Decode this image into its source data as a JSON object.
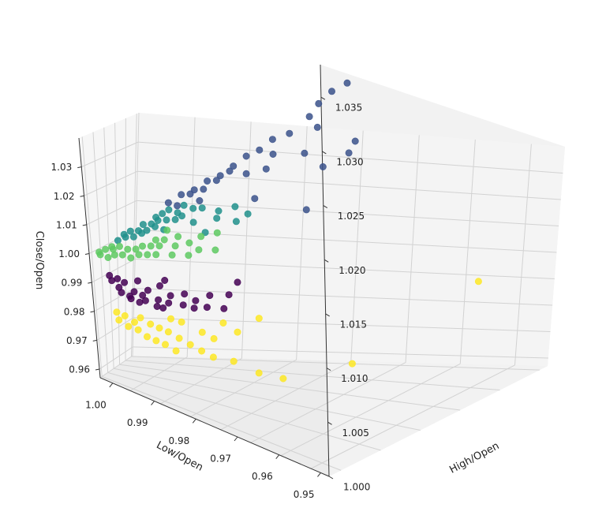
{
  "chart_data": {
    "type": "scatter",
    "projection": "3d",
    "title": "",
    "xlabel": "High/Open",
    "ylabel": "Low/Open",
    "zlabel": "Close/Open",
    "xlim": [
      1.0,
      1.038
    ],
    "ylim": [
      1.003,
      0.948
    ],
    "zlim": [
      0.957,
      1.04
    ],
    "x_ticks": [
      "1.000",
      "1.005",
      "1.010",
      "1.015",
      "1.020",
      "1.025",
      "1.030",
      "1.035"
    ],
    "y_ticks": [
      "1.00",
      "0.99",
      "0.98",
      "0.97",
      "0.96",
      "0.95"
    ],
    "z_ticks": [
      "0.96",
      "0.97",
      "0.98",
      "0.99",
      "1.00",
      "1.01",
      "1.02",
      "1.03"
    ],
    "grid": true,
    "colormap": "viridis",
    "cluster_colors": {
      "0": "#440154",
      "1": "#3b528b",
      "2": "#21918c",
      "3": "#5ec962",
      "4": "#fde725"
    },
    "series": [
      {
        "cluster": "0",
        "color": "#440154",
        "points": [
          [
            1.004,
            0.996,
            0.99
          ],
          [
            1.003,
            0.995,
            0.988
          ],
          [
            1.005,
            0.994,
            0.987
          ],
          [
            1.002,
            0.997,
            0.992
          ],
          [
            1.006,
            0.993,
            0.986
          ],
          [
            1.004,
            0.992,
            0.985
          ],
          [
            1.007,
            0.994,
            0.988
          ],
          [
            1.003,
            0.996,
            0.991
          ],
          [
            1.008,
            0.992,
            0.985
          ],
          [
            1.005,
            0.99,
            0.983
          ],
          [
            1.01,
            0.993,
            0.987
          ],
          [
            1.006,
            0.991,
            0.984
          ],
          [
            1.009,
            0.995,
            0.99
          ],
          [
            1.004,
            0.991,
            0.984
          ],
          [
            1.011,
            0.99,
            0.984
          ],
          [
            1.012,
            0.993,
            0.988
          ],
          [
            1.008,
            0.989,
            0.982
          ],
          [
            1.013,
            0.991,
            0.986
          ],
          [
            1.007,
            0.988,
            0.982
          ],
          [
            1.015,
            0.991,
            0.988
          ],
          [
            1.002,
            0.995,
            0.99
          ],
          [
            1.006,
            0.996,
            0.991
          ],
          [
            1.01,
            0.996,
            0.992
          ],
          [
            1.003,
            0.993,
            0.986
          ],
          [
            1.009,
            0.99,
            0.984
          ],
          [
            1.014,
            0.989,
            0.984
          ],
          [
            1.018,
            0.992,
            0.989
          ],
          [
            1.02,
            0.994,
            0.993
          ],
          [
            1.016,
            0.988,
            0.984
          ],
          [
            1.012,
            0.988,
            0.983
          ]
        ]
      },
      {
        "cluster": "1",
        "color": "#3b528b",
        "points": [
          [
            1.012,
            0.999,
            1.015
          ],
          [
            1.014,
            0.999,
            1.017
          ],
          [
            1.016,
            0.999,
            1.018
          ],
          [
            1.013,
            0.998,
            1.014
          ],
          [
            1.015,
            0.998,
            1.017
          ],
          [
            1.018,
            0.999,
            1.02
          ],
          [
            1.017,
            0.998,
            1.018
          ],
          [
            1.02,
            0.999,
            1.021
          ],
          [
            1.019,
            0.998,
            1.02
          ],
          [
            1.016,
            0.997,
            1.015
          ],
          [
            1.022,
            0.999,
            1.023
          ],
          [
            1.024,
            0.999,
            1.025
          ],
          [
            1.021,
            0.998,
            1.022
          ],
          [
            1.026,
            0.999,
            1.026
          ],
          [
            1.023,
            0.997,
            1.021
          ],
          [
            1.028,
            0.999,
            1.028
          ],
          [
            1.03,
            0.998,
            1.029
          ],
          [
            1.027,
            0.997,
            1.025
          ],
          [
            1.033,
            0.998,
            1.032
          ],
          [
            1.035,
            0.999,
            1.034
          ],
          [
            1.022,
            0.992,
            1.015
          ],
          [
            1.025,
            0.995,
            1.022
          ],
          [
            1.03,
            0.994,
            1.025
          ],
          [
            1.033,
            0.996,
            1.03
          ],
          [
            1.034,
            0.99,
            1.025
          ],
          [
            1.031,
            0.991,
            1.022
          ],
          [
            1.036,
            0.992,
            1.027
          ],
          [
            1.037,
            0.999,
            1.036
          ],
          [
            1.038,
            0.997,
            1.038
          ],
          [
            1.026,
            0.985,
            1.012
          ]
        ]
      },
      {
        "cluster": "2",
        "color": "#21918c",
        "points": [
          [
            1.004,
            0.999,
            1.004
          ],
          [
            1.005,
            0.999,
            1.006
          ],
          [
            1.006,
            0.999,
            1.007
          ],
          [
            1.007,
            0.998,
            1.007
          ],
          [
            1.008,
            0.999,
            1.009
          ],
          [
            1.009,
            0.998,
            1.009
          ],
          [
            1.01,
            0.999,
            1.011
          ],
          [
            1.011,
            0.999,
            1.012
          ],
          [
            1.005,
            0.998,
            1.005
          ],
          [
            1.006,
            0.997,
            1.005
          ],
          [
            1.008,
            0.997,
            1.007
          ],
          [
            1.01,
            0.998,
            1.01
          ],
          [
            1.012,
            0.999,
            1.013
          ],
          [
            1.011,
            0.997,
            1.01
          ],
          [
            1.013,
            0.998,
            1.012
          ],
          [
            1.007,
            0.996,
            1.006
          ],
          [
            1.009,
            0.996,
            1.008
          ],
          [
            1.012,
            0.996,
            1.01
          ],
          [
            1.014,
            0.998,
            1.014
          ],
          [
            1.013,
            0.996,
            1.011
          ],
          [
            1.015,
            0.997,
            1.013
          ],
          [
            1.01,
            0.995,
            1.007
          ],
          [
            1.016,
            0.996,
            1.013
          ],
          [
            1.014,
            0.994,
            1.009
          ],
          [
            1.018,
            0.995,
            1.012
          ],
          [
            1.017,
            0.993,
            1.01
          ],
          [
            1.02,
            0.994,
            1.013
          ],
          [
            1.015,
            0.992,
            1.006
          ],
          [
            1.019,
            0.991,
            1.009
          ],
          [
            1.021,
            0.992,
            1.011
          ]
        ]
      },
      {
        "cluster": "3",
        "color": "#5ec962",
        "points": [
          [
            1.001,
            0.999,
            1.0
          ],
          [
            1.002,
            0.999,
            1.001
          ],
          [
            1.001,
            0.998,
            0.999
          ],
          [
            1.003,
            0.999,
            1.002
          ],
          [
            1.002,
            0.997,
            0.998
          ],
          [
            1.003,
            0.998,
            1.001
          ],
          [
            1.004,
            0.998,
            1.002
          ],
          [
            1.003,
            0.997,
            0.999
          ],
          [
            1.005,
            0.997,
            1.001
          ],
          [
            1.004,
            0.996,
            0.999
          ],
          [
            1.006,
            0.996,
            1.001
          ],
          [
            1.005,
            0.995,
            0.998
          ],
          [
            1.007,
            0.996,
            1.002
          ],
          [
            1.006,
            0.994,
            0.999
          ],
          [
            1.008,
            0.995,
            1.002
          ],
          [
            1.007,
            0.993,
            0.999
          ],
          [
            1.009,
            0.994,
            1.002
          ],
          [
            1.01,
            0.995,
            1.004
          ],
          [
            1.008,
            0.992,
            0.999
          ],
          [
            1.011,
            0.993,
            1.002
          ],
          [
            1.012,
            0.995,
            1.005
          ],
          [
            1.01,
            0.991,
            0.999
          ],
          [
            1.013,
            0.993,
            1.003
          ],
          [
            1.014,
            0.992,
            1.001
          ],
          [
            1.015,
            0.994,
            1.005
          ],
          [
            1.012,
            0.99,
            0.999
          ],
          [
            1.016,
            0.991,
            1.001
          ],
          [
            1.017,
            0.993,
            1.006
          ],
          [
            1.009,
            0.996,
            1.004
          ],
          [
            1.011,
            0.997,
            1.007
          ]
        ]
      },
      {
        "cluster": "4",
        "color": "#fde725",
        "points": [
          [
            1.002,
            0.992,
            0.979
          ],
          [
            1.003,
            0.991,
            0.978
          ],
          [
            1.002,
            0.99,
            0.976
          ],
          [
            1.004,
            0.989,
            0.976
          ],
          [
            1.003,
            0.988,
            0.974
          ],
          [
            1.005,
            0.99,
            0.978
          ],
          [
            1.006,
            0.988,
            0.976
          ],
          [
            1.004,
            0.986,
            0.973
          ],
          [
            1.005,
            0.985,
            0.971
          ],
          [
            1.007,
            0.987,
            0.975
          ],
          [
            1.006,
            0.984,
            0.97
          ],
          [
            1.008,
            0.986,
            0.974
          ],
          [
            1.007,
            0.983,
            0.969
          ],
          [
            1.009,
            0.984,
            0.972
          ],
          [
            1.01,
            0.982,
            0.97
          ],
          [
            1.008,
            0.981,
            0.967
          ],
          [
            1.011,
            0.98,
            0.968
          ],
          [
            1.012,
            0.978,
            0.966
          ],
          [
            1.013,
            0.982,
            0.973
          ],
          [
            1.015,
            0.985,
            0.979
          ],
          [
            1.016,
            0.982,
            0.976
          ],
          [
            1.014,
            0.976,
            0.965
          ],
          [
            1.016,
            0.972,
            0.961
          ],
          [
            1.018,
            0.969,
            0.959
          ],
          [
            1.02,
            0.986,
            0.982
          ],
          [
            1.012,
            0.984,
            0.975
          ],
          [
            1.01,
            0.987,
            0.978
          ],
          [
            1.009,
            0.989,
            0.979
          ],
          [
            1.021,
            0.952,
            0.958
          ],
          [
            1.037,
            0.964,
            0.992
          ]
        ]
      }
    ]
  }
}
